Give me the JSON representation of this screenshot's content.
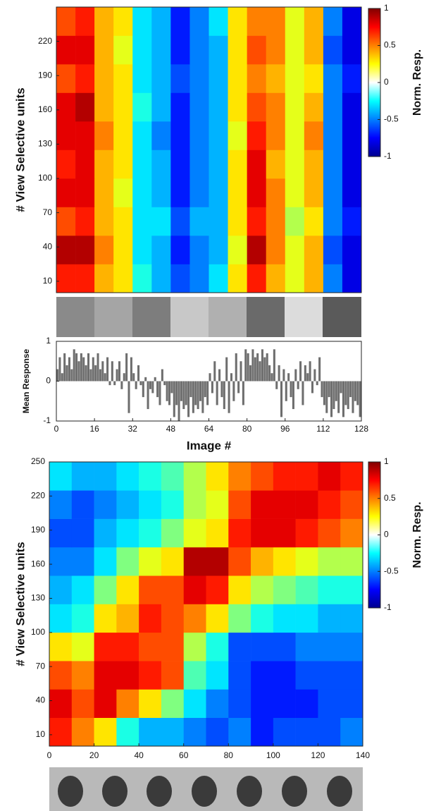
{
  "chart_data": [
    {
      "type": "heatmap",
      "ylabel": "# View Selective units",
      "xlim": [
        0,
        128
      ],
      "ylim": [
        0,
        250
      ],
      "yticks": [
        10,
        40,
        70,
        100,
        130,
        160,
        190,
        220
      ],
      "colorbar": {
        "label": "Norm. Resp.",
        "lim": [
          -1,
          1
        ],
        "ticks": [
          -1,
          -0.5,
          0,
          0.5,
          1
        ]
      },
      "z": [
        [
          0.7,
          0.7,
          0.4,
          0.3,
          -0.2,
          -0.4,
          -0.6,
          -0.5,
          -0.3,
          0.3,
          0.7,
          0.4,
          0.2,
          0.4,
          -0.5,
          -0.8
        ],
        [
          0.9,
          0.9,
          0.5,
          0.3,
          -0.3,
          -0.4,
          -0.7,
          -0.5,
          -0.4,
          0.2,
          0.9,
          0.5,
          0.2,
          0.4,
          -0.6,
          -0.8
        ],
        [
          0.6,
          0.7,
          0.4,
          0.3,
          -0.3,
          -0.3,
          -0.6,
          -0.4,
          -0.4,
          0.3,
          0.7,
          0.5,
          0.1,
          0.3,
          -0.5,
          -0.7
        ],
        [
          0.8,
          0.8,
          0.4,
          0.2,
          -0.3,
          -0.4,
          -0.7,
          -0.5,
          -0.4,
          0.3,
          0.8,
          0.5,
          0.2,
          0.4,
          -0.5,
          -0.8
        ],
        [
          0.7,
          0.8,
          0.4,
          0.3,
          -0.3,
          -0.4,
          -0.7,
          -0.5,
          -0.4,
          0.3,
          0.8,
          0.4,
          0.2,
          0.4,
          -0.5,
          -0.8
        ],
        [
          0.8,
          0.8,
          0.5,
          0.3,
          -0.3,
          -0.5,
          -0.7,
          -0.5,
          -0.4,
          0.2,
          0.7,
          0.5,
          0.2,
          0.5,
          -0.5,
          -0.8
        ],
        [
          0.8,
          0.9,
          0.4,
          0.3,
          -0.2,
          -0.4,
          -0.7,
          -0.5,
          -0.4,
          0.3,
          0.6,
          0.5,
          0.2,
          0.4,
          -0.5,
          -0.8
        ],
        [
          0.6,
          0.7,
          0.4,
          0.3,
          -0.3,
          -0.4,
          -0.6,
          -0.5,
          -0.4,
          0.3,
          0.5,
          0.4,
          0.2,
          0.3,
          -0.5,
          -0.7
        ],
        [
          0.8,
          0.8,
          0.4,
          0.2,
          -0.3,
          -0.4,
          -0.7,
          -0.5,
          -0.4,
          0.3,
          0.6,
          0.5,
          0.2,
          0.4,
          -0.6,
          -0.8
        ],
        [
          0.6,
          0.7,
          0.4,
          0.3,
          -0.3,
          -0.4,
          -0.7,
          -0.5,
          -0.3,
          0.3,
          0.5,
          0.5,
          0.2,
          0.4,
          -0.5,
          -0.8
        ]
      ]
    },
    {
      "type": "bar",
      "xlabel": "Image #",
      "ylabel": "Mean Response",
      "color": "#6e6e6e",
      "xlim": [
        0,
        128
      ],
      "xticks": [
        0,
        16,
        32,
        48,
        64,
        80,
        96,
        112,
        128
      ],
      "ylim": [
        -1,
        1
      ],
      "yticks": [
        -1,
        0,
        1
      ],
      "values": [
        0.3,
        0.6,
        0.2,
        0.7,
        0.4,
        0.6,
        0.3,
        0.8,
        0.7,
        0.5,
        0.7,
        0.6,
        0.4,
        0.7,
        0.3,
        0.6,
        0.4,
        0.7,
        0.3,
        0.5,
        0.2,
        0.6,
        -0.1,
        0.5,
        -0.1,
        0.3,
        0.5,
        -0.2,
        0.2,
        0.7,
        -0.8,
        0.6,
        0.2,
        -0.2,
        0.4,
        -0.1,
        -0.4,
        0.1,
        -0.7,
        -0.2,
        -0.3,
        0.1,
        -0.4,
        -0.6,
        0.3,
        -0.1,
        -0.5,
        -0.6,
        -0.3,
        -0.9,
        -0.6,
        -1.0,
        -0.5,
        -0.7,
        -0.6,
        -0.9,
        -0.4,
        -0.8,
        -0.6,
        -0.7,
        -0.5,
        -0.8,
        -0.4,
        -0.6,
        0.2,
        -0.3,
        0.5,
        -0.6,
        0.3,
        -0.4,
        -0.7,
        0.6,
        -0.8,
        0.2,
        -0.5,
        0.7,
        -0.3,
        0.5,
        -0.6,
        0.8,
        0.7,
        0.4,
        0.8,
        0.6,
        0.7,
        0.5,
        0.8,
        0.6,
        0.7,
        0.4,
        0.2,
        0.8,
        -0.2,
        0.4,
        -0.9,
        0.3,
        -0.5,
        0.2,
        -0.4,
        -0.7,
        0.3,
        -0.2,
        0.5,
        -0.6,
        0.4,
        0.2,
        0.5,
        -0.3,
        0.3,
        -0.1,
        0.6,
        -0.4,
        -0.6,
        -0.8,
        -0.4,
        -0.9,
        -0.7,
        -0.5,
        -0.8,
        -0.3,
        -0.9,
        -0.6,
        -0.7,
        -0.4,
        -0.8,
        -0.5,
        -0.6,
        -0.9
      ]
    },
    {
      "type": "heatmap",
      "ylabel": "# View Selective units",
      "xlim": [
        0,
        140
      ],
      "ylim": [
        0,
        250
      ],
      "xticks": [
        0,
        20,
        40,
        60,
        80,
        100,
        120,
        140
      ],
      "yticks": [
        10,
        40,
        70,
        100,
        130,
        160,
        190,
        220,
        250
      ],
      "colorbar": {
        "label": "Norm. Resp.",
        "lim": [
          -1,
          1
        ],
        "ticks": [
          -1,
          -0.5,
          0,
          0.5,
          1
        ]
      },
      "z": [
        [
          0.7,
          0.5,
          0.3,
          -0.2,
          -0.4,
          -0.4,
          -0.5,
          -0.6,
          -0.5,
          -0.7,
          -0.6,
          -0.6,
          -0.6,
          -0.5
        ],
        [
          0.8,
          0.6,
          0.8,
          0.5,
          0.3,
          0,
          -0.3,
          -0.5,
          -0.6,
          -0.7,
          -0.7,
          -0.7,
          -0.6,
          -0.6
        ],
        [
          0.6,
          0.5,
          0.8,
          0.8,
          0.7,
          0.6,
          -0.1,
          -0.3,
          -0.6,
          -0.7,
          -0.7,
          -0.6,
          -0.6,
          -0.6
        ],
        [
          0.3,
          0.2,
          0.7,
          0.7,
          0.6,
          0.6,
          0.1,
          -0.2,
          -0.6,
          -0.6,
          -0.6,
          -0.5,
          -0.5,
          -0.5
        ],
        [
          -0.3,
          -0.2,
          0.3,
          0.4,
          0.7,
          0.6,
          0.5,
          0.3,
          0,
          -0.2,
          -0.3,
          -0.3,
          -0.4,
          -0.4
        ],
        [
          -0.4,
          -0.3,
          0,
          0.3,
          0.6,
          0.6,
          0.8,
          0.7,
          0.3,
          0.1,
          0,
          -0.1,
          -0.2,
          -0.2
        ],
        [
          -0.5,
          -0.5,
          -0.3,
          0,
          0.2,
          0.3,
          0.9,
          0.9,
          0.6,
          0.4,
          0.3,
          0.2,
          0.1,
          0.1
        ],
        [
          -0.6,
          -0.6,
          -0.4,
          -0.3,
          -0.2,
          0,
          0.2,
          0.3,
          0.7,
          0.8,
          0.8,
          0.7,
          0.6,
          0.5
        ],
        [
          -0.5,
          -0.6,
          -0.5,
          -0.4,
          -0.3,
          -0.2,
          0.1,
          0.2,
          0.6,
          0.8,
          0.8,
          0.8,
          0.7,
          0.6
        ],
        [
          -0.3,
          -0.4,
          -0.4,
          -0.3,
          -0.2,
          -0.1,
          0.1,
          0.3,
          0.5,
          0.6,
          0.7,
          0.7,
          0.8,
          0.7
        ]
      ]
    }
  ]
}
